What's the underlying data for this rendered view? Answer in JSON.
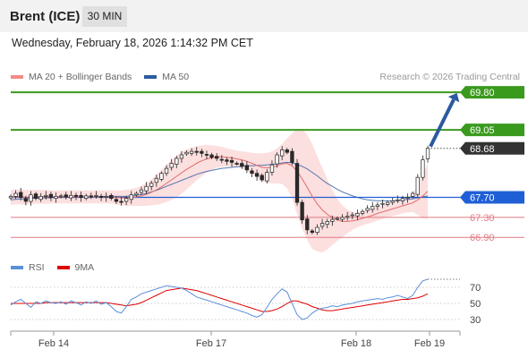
{
  "header": {
    "instrument": "Brent (ICE)",
    "timeframe": "30 MIN"
  },
  "datetime": "Wednesday, February 18, 2026 1:14:32 PM CET",
  "legend": [
    {
      "label": "MA 20 + Bollinger Bands",
      "color": "#f28b82"
    },
    {
      "label": "MA 50",
      "color": "#2c5aa0"
    }
  ],
  "credit": "Research © 2026 Trading Central",
  "rsi_legend": [
    {
      "label": "RSI",
      "color": "#5b8fd9"
    },
    {
      "label": "9MA",
      "color": "#e00000"
    }
  ],
  "chart_data": {
    "type": "candlestick",
    "price_range": [
      66.6,
      70.0
    ],
    "dates": [
      "Feb 14",
      "Feb 17",
      "Feb 18",
      "Feb 19"
    ],
    "levels": [
      {
        "value": 69.8,
        "label": "69.80",
        "color": "#3a9a1e",
        "kind": "resistance"
      },
      {
        "value": 69.05,
        "label": "69.05",
        "color": "#3a9a1e",
        "kind": "resistance"
      },
      {
        "value": 68.68,
        "label": "68.68",
        "color": "#333333",
        "kind": "last"
      },
      {
        "value": 67.7,
        "label": "67.70",
        "color": "#1f5fd6",
        "kind": "pivot"
      },
      {
        "value": 67.3,
        "label": "67.30",
        "color": "#e07a84",
        "kind": "support"
      },
      {
        "value": 66.9,
        "label": "66.90",
        "color": "#e07a84",
        "kind": "support"
      }
    ],
    "close": [
      67.72,
      67.78,
      67.7,
      67.62,
      67.75,
      67.68,
      67.72,
      67.74,
      67.7,
      67.72,
      67.73,
      67.71,
      67.74,
      67.72,
      67.7,
      67.73,
      67.72,
      67.74,
      67.7,
      67.72,
      67.68,
      67.62,
      67.6,
      67.68,
      67.75,
      67.78,
      67.85,
      67.92,
      67.98,
      68.08,
      68.18,
      68.28,
      68.38,
      68.48,
      68.55,
      68.6,
      68.62,
      68.6,
      68.58,
      68.55,
      68.5,
      68.48,
      68.45,
      68.42,
      68.4,
      68.38,
      68.32,
      68.25,
      68.18,
      68.12,
      68.05,
      68.2,
      68.35,
      68.55,
      68.65,
      68.6,
      68.4,
      67.6,
      67.25,
      67.05,
      67.0,
      67.1,
      67.18,
      67.22,
      67.26,
      67.28,
      67.3,
      67.32,
      67.35,
      67.38,
      67.42,
      67.48,
      67.52,
      67.55,
      67.58,
      67.6,
      67.63,
      67.65,
      67.68,
      67.7,
      67.78,
      68.1,
      68.45,
      68.68
    ],
    "ma20": [
      67.7,
      67.71,
      67.71,
      67.7,
      67.71,
      67.71,
      67.71,
      67.71,
      67.71,
      67.71,
      67.71,
      67.71,
      67.71,
      67.71,
      67.71,
      67.71,
      67.71,
      67.71,
      67.71,
      67.71,
      67.71,
      67.7,
      67.69,
      67.69,
      67.7,
      67.71,
      67.73,
      67.76,
      67.8,
      67.85,
      67.91,
      67.98,
      68.05,
      68.12,
      68.19,
      68.26,
      68.32,
      68.38,
      68.43,
      68.47,
      68.49,
      68.51,
      68.51,
      68.5,
      68.49,
      68.47,
      68.45,
      68.42,
      68.38,
      68.34,
      68.3,
      68.29,
      68.3,
      68.33,
      68.37,
      68.38,
      68.33,
      68.22,
      68.07,
      67.9,
      67.72,
      67.57,
      67.45,
      67.36,
      67.3,
      67.25,
      67.22,
      67.22,
      67.23,
      67.25,
      67.28,
      67.31,
      67.34,
      67.38,
      67.41,
      67.44,
      67.47,
      67.5,
      67.53,
      67.56,
      67.59,
      67.65,
      67.73,
      67.82
    ],
    "ma50": [
      67.65,
      67.66,
      67.67,
      67.67,
      67.68,
      67.68,
      67.69,
      67.69,
      67.69,
      67.7,
      67.7,
      67.7,
      67.7,
      67.71,
      67.71,
      67.71,
      67.71,
      67.71,
      67.72,
      67.72,
      67.72,
      67.72,
      67.72,
      67.72,
      67.73,
      67.74,
      67.76,
      67.78,
      67.81,
      67.84,
      67.88,
      67.92,
      67.96,
      68.0,
      68.04,
      68.08,
      68.12,
      68.16,
      68.19,
      68.22,
      68.24,
      68.26,
      68.28,
      68.29,
      68.3,
      68.31,
      68.32,
      68.33,
      68.33,
      68.34,
      68.34,
      68.35,
      68.36,
      68.37,
      68.39,
      68.4,
      68.39,
      68.36,
      68.32,
      68.27,
      68.2,
      68.13,
      68.05,
      67.98,
      67.92,
      67.86,
      67.81,
      67.77,
      67.73,
      67.7,
      67.67,
      67.65,
      67.64,
      67.63,
      67.63,
      67.63,
      67.63,
      67.64,
      67.65,
      67.66,
      67.67,
      67.69,
      67.71,
      67.73
    ],
    "bb_width": [
      0.15,
      0.15,
      0.15,
      0.15,
      0.14,
      0.14,
      0.14,
      0.14,
      0.13,
      0.13,
      0.13,
      0.13,
      0.13,
      0.13,
      0.13,
      0.13,
      0.13,
      0.13,
      0.13,
      0.13,
      0.13,
      0.14,
      0.15,
      0.16,
      0.17,
      0.18,
      0.2,
      0.23,
      0.26,
      0.3,
      0.34,
      0.37,
      0.4,
      0.42,
      0.42,
      0.4,
      0.37,
      0.34,
      0.31,
      0.28,
      0.25,
      0.22,
      0.2,
      0.18,
      0.17,
      0.16,
      0.17,
      0.19,
      0.21,
      0.24,
      0.28,
      0.3,
      0.32,
      0.35,
      0.4,
      0.5,
      0.65,
      0.85,
      1.0,
      1.05,
      1.05,
      0.95,
      0.85,
      0.7,
      0.55,
      0.42,
      0.32,
      0.24,
      0.18,
      0.15,
      0.14,
      0.14,
      0.14,
      0.14,
      0.14,
      0.14,
      0.14,
      0.15,
      0.15,
      0.16,
      0.18,
      0.3,
      0.45,
      0.55
    ],
    "projection": {
      "from": 68.68,
      "to": 69.8
    },
    "rsi": {
      "levels": [
        70,
        50,
        30
      ],
      "range": [
        20,
        80
      ],
      "rsi": [
        48,
        52,
        55,
        50,
        45,
        52,
        50,
        53,
        51,
        50,
        52,
        49,
        53,
        51,
        48,
        52,
        50,
        53,
        49,
        51,
        46,
        40,
        38,
        46,
        55,
        58,
        62,
        64,
        66,
        68,
        70,
        72,
        71,
        70,
        69,
        66,
        62,
        58,
        56,
        54,
        52,
        50,
        48,
        46,
        44,
        42,
        40,
        38,
        35,
        33,
        36,
        45,
        55,
        62,
        68,
        64,
        50,
        36,
        30,
        32,
        38,
        42,
        44,
        45,
        47,
        46,
        48,
        49,
        50,
        52,
        53,
        54,
        55,
        56,
        55,
        57,
        58,
        60,
        58,
        56,
        60,
        70,
        78,
        80
      ],
      "ma9": [
        50,
        50,
        50,
        50,
        50,
        50,
        50,
        51,
        51,
        51,
        51,
        51,
        51,
        51,
        51,
        51,
        51,
        51,
        51,
        51,
        50,
        49,
        48,
        47,
        48,
        49,
        51,
        54,
        57,
        60,
        63,
        66,
        67,
        68,
        69,
        68,
        67,
        66,
        64,
        62,
        60,
        58,
        56,
        54,
        52,
        50,
        48,
        46,
        44,
        42,
        40,
        40,
        41,
        43,
        46,
        50,
        53,
        53,
        51,
        49,
        46,
        44,
        42,
        41,
        41,
        42,
        43,
        44,
        45,
        46,
        47,
        48,
        49,
        50,
        51,
        52,
        53,
        54,
        55,
        55,
        56,
        57,
        59,
        62
      ]
    }
  }
}
